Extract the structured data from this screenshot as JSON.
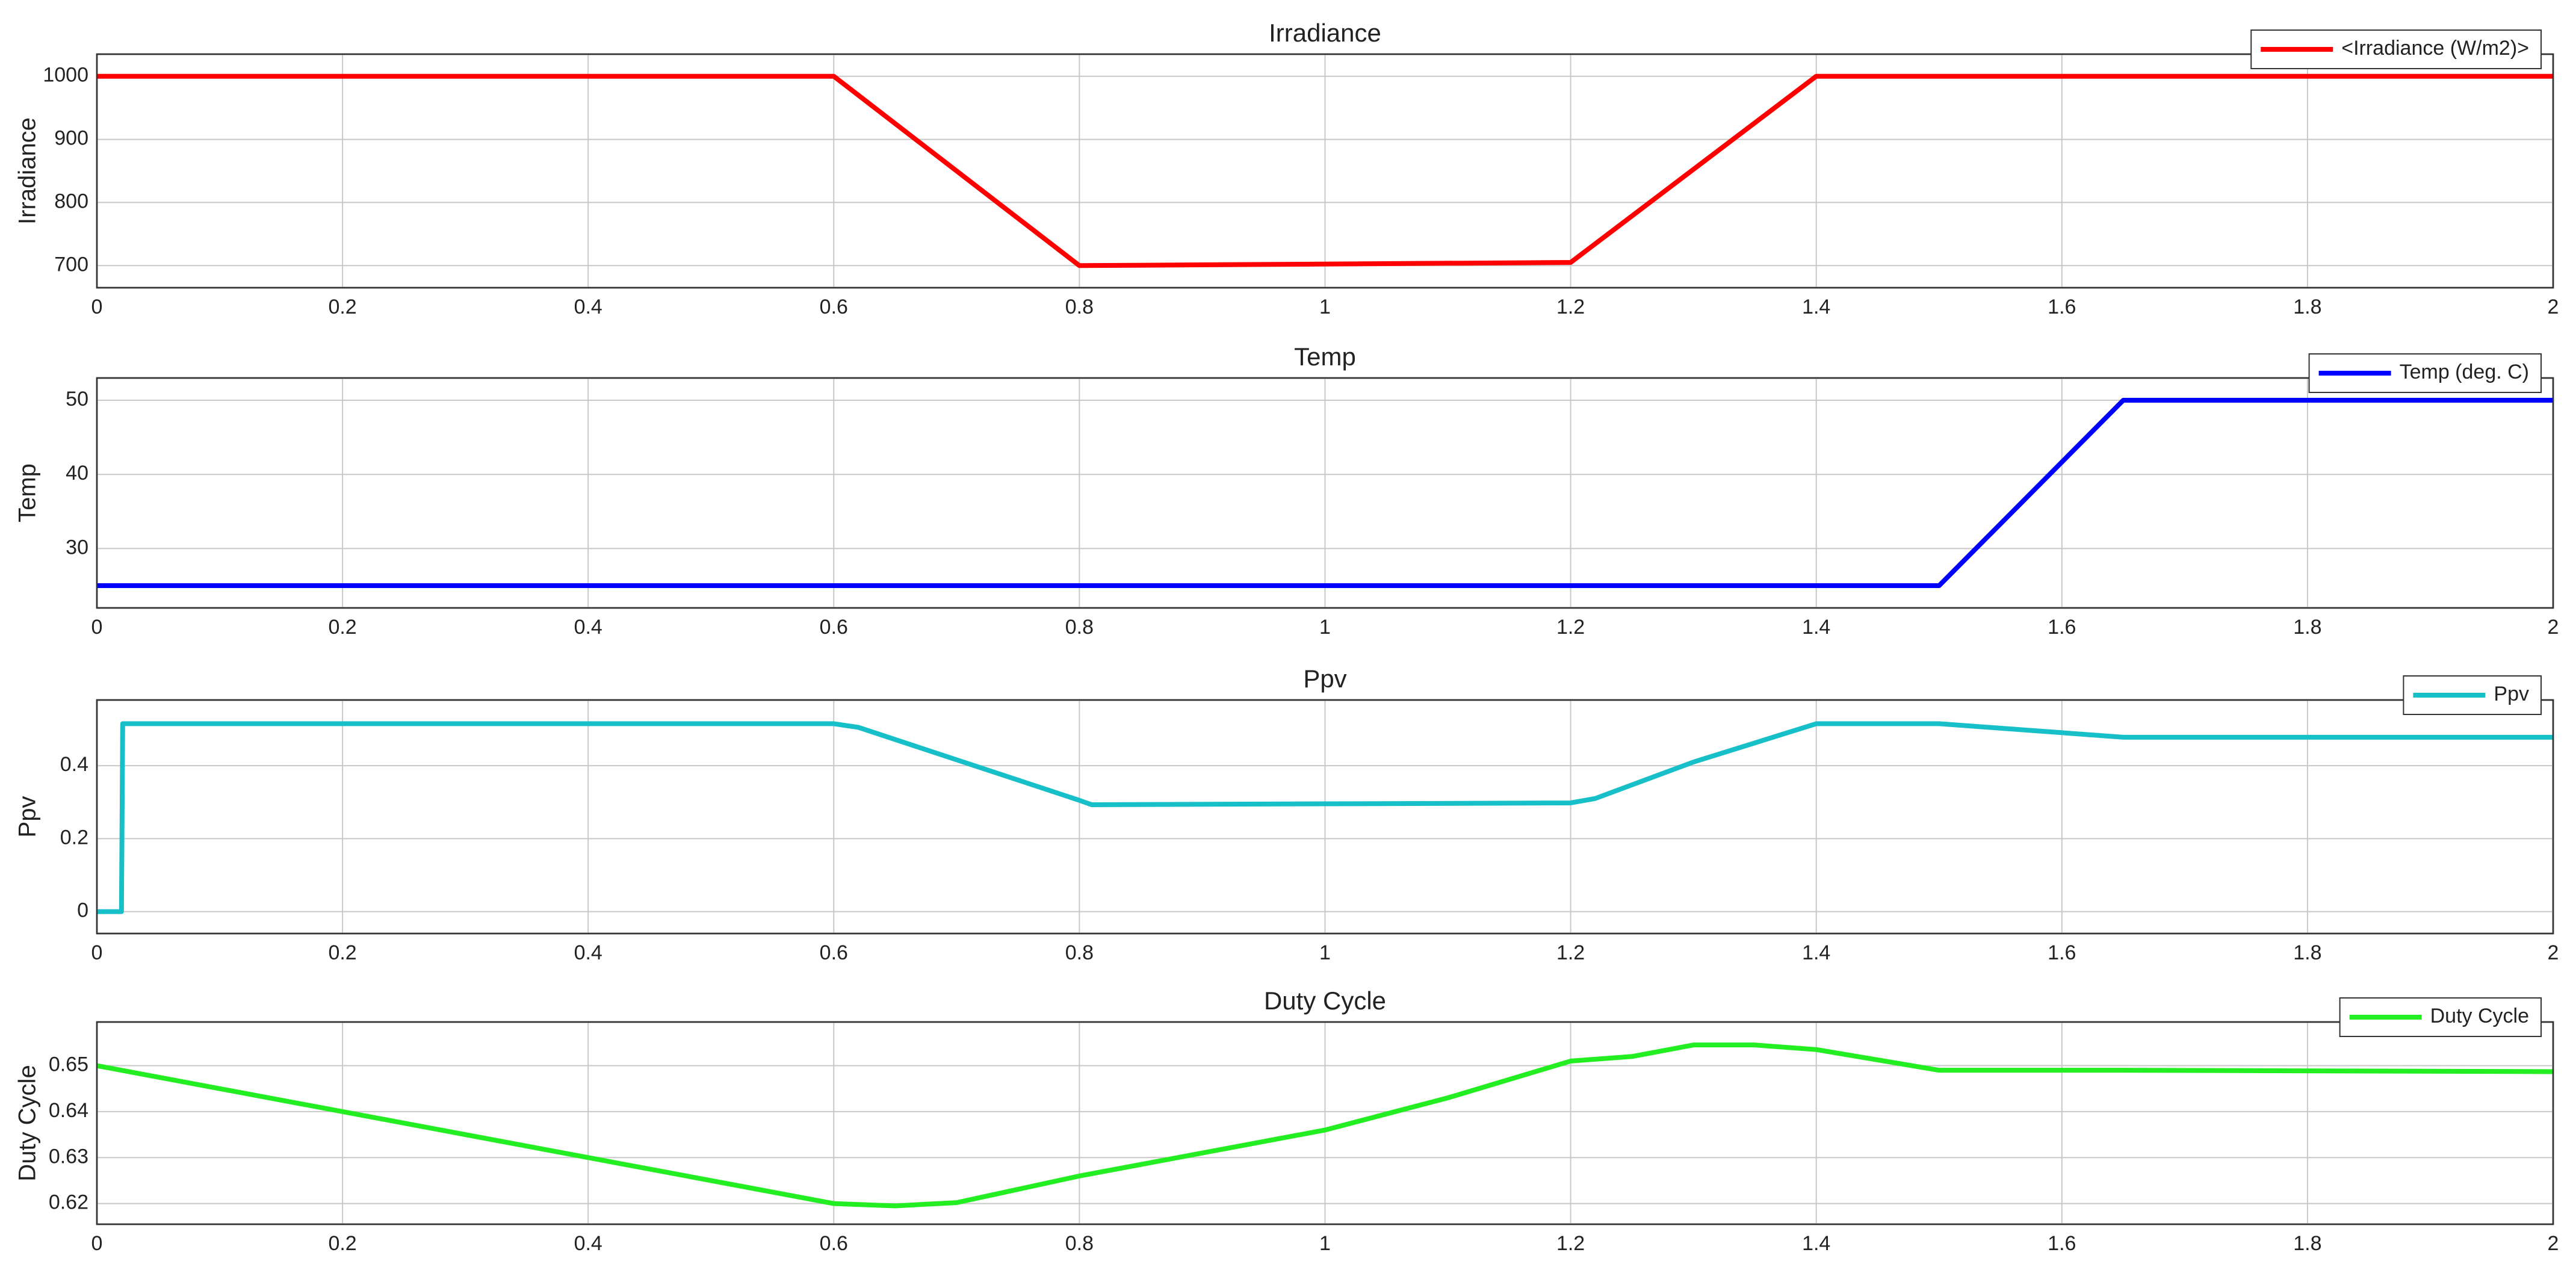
{
  "chart_data": [
    {
      "type": "line",
      "title": "Irradiance",
      "ylabel": "Irradiance",
      "x": [
        0,
        0.6,
        0.8,
        1.2,
        1.4,
        2
      ],
      "series": [
        {
          "name": "<Irradiance (W/m2)>",
          "color": "#ff0000",
          "values": [
            1000,
            1000,
            700,
            705,
            1000,
            1000
          ]
        }
      ],
      "xlim": [
        0,
        2
      ],
      "ylim": [
        665,
        1035
      ],
      "xticks": [
        0,
        0.2,
        0.4,
        0.6,
        0.8,
        1,
        1.2,
        1.4,
        1.6,
        1.8,
        2
      ],
      "yticks": [
        700,
        800,
        900,
        1000
      ],
      "grid": true,
      "legend": "upper right"
    },
    {
      "type": "line",
      "title": "Temp",
      "ylabel": "Temp",
      "x": [
        0,
        1.5,
        1.65,
        2
      ],
      "series": [
        {
          "name": "Temp (deg. C)",
          "color": "#0000ff",
          "values": [
            25,
            25,
            50,
            50
          ]
        }
      ],
      "xlim": [
        0,
        2
      ],
      "ylim": [
        22,
        53
      ],
      "xticks": [
        0,
        0.2,
        0.4,
        0.6,
        0.8,
        1,
        1.2,
        1.4,
        1.6,
        1.8,
        2
      ],
      "yticks": [
        30,
        40,
        50
      ],
      "grid": true,
      "legend": "upper right"
    },
    {
      "type": "line",
      "title": "Ppv",
      "ylabel": "Ppv",
      "x": [
        0,
        0.02,
        0.021,
        0.6,
        0.62,
        0.8,
        0.81,
        1.2,
        1.22,
        1.3,
        1.4,
        1.5,
        1.65,
        2
      ],
      "series": [
        {
          "name": "Ppv",
          "color": "#17c0c8",
          "values": [
            0,
            0,
            0.515,
            0.515,
            0.505,
            0.305,
            0.293,
            0.298,
            0.31,
            0.41,
            0.515,
            0.515,
            0.478,
            0.478
          ]
        }
      ],
      "xlim": [
        0,
        2
      ],
      "ylim": [
        -0.06,
        0.58
      ],
      "xticks": [
        0,
        0.2,
        0.4,
        0.6,
        0.8,
        1,
        1.2,
        1.4,
        1.6,
        1.8,
        2
      ],
      "yticks": [
        0,
        0.2,
        0.4
      ],
      "grid": true,
      "legend": "upper right"
    },
    {
      "type": "line",
      "title": "Duty Cycle",
      "ylabel": "Duty Cycle",
      "x": [
        0,
        0.6,
        0.65,
        0.7,
        0.8,
        1.0,
        1.1,
        1.2,
        1.25,
        1.3,
        1.35,
        1.4,
        1.5,
        1.65,
        2
      ],
      "series": [
        {
          "name": "Duty Cycle",
          "color": "#22ee22",
          "values": [
            0.65,
            0.62,
            0.6195,
            0.6202,
            0.626,
            0.636,
            0.643,
            0.651,
            0.652,
            0.6545,
            0.6545,
            0.6535,
            0.649,
            0.649,
            0.6487
          ]
        }
      ],
      "xlim": [
        0,
        2
      ],
      "ylim": [
        0.6155,
        0.6595
      ],
      "xticks": [
        0,
        0.2,
        0.4,
        0.6,
        0.8,
        1,
        1.2,
        1.4,
        1.6,
        1.8,
        2
      ],
      "yticks": [
        0.62,
        0.63,
        0.64,
        0.65
      ],
      "grid": true,
      "legend": "upper right"
    }
  ]
}
